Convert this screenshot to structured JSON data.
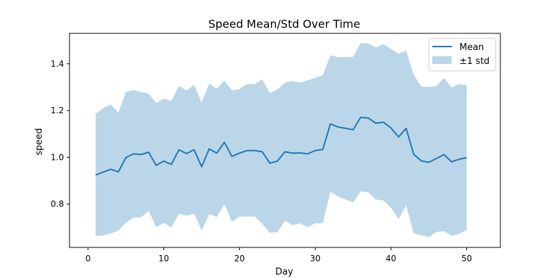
{
  "chart_data": {
    "type": "area",
    "title": "Speed Mean/Std Over Time",
    "xlabel": "Day",
    "ylabel": "speed",
    "xlim": [
      -2.45,
      54.45
    ],
    "ylim": [
      0.615,
      1.53
    ],
    "xticks": [
      0,
      10,
      20,
      30,
      40,
      50
    ],
    "yticks": [
      0.8,
      1.0,
      1.2,
      1.4
    ],
    "xtick_labels": [
      "0",
      "10",
      "20",
      "30",
      "40",
      "50"
    ],
    "ytick_labels": [
      "0.8",
      "1.0",
      "1.2",
      "1.4"
    ],
    "grid": false,
    "legend_position": "top-right",
    "x": [
      1,
      2,
      3,
      4,
      5,
      6,
      7,
      8,
      9,
      10,
      11,
      12,
      13,
      14,
      15,
      16,
      17,
      18,
      19,
      20,
      21,
      22,
      23,
      24,
      25,
      26,
      27,
      28,
      29,
      30,
      31,
      32,
      33,
      34,
      35,
      36,
      37,
      38,
      39,
      40,
      41,
      42,
      43,
      44,
      45,
      46,
      47,
      48,
      49,
      50
    ],
    "series": [
      {
        "name": "Mean",
        "type": "line",
        "color": "#1f77b4",
        "values": [
          0.924,
          0.937,
          0.949,
          0.938,
          0.999,
          1.015,
          1.012,
          1.022,
          0.966,
          0.984,
          0.97,
          1.032,
          1.016,
          1.033,
          0.96,
          1.036,
          1.018,
          1.064,
          1.004,
          1.018,
          1.029,
          1.029,
          1.024,
          0.975,
          0.984,
          1.024,
          1.018,
          1.019,
          1.015,
          1.029,
          1.034,
          1.143,
          1.13,
          1.124,
          1.118,
          1.171,
          1.168,
          1.146,
          1.15,
          1.126,
          1.087,
          1.124,
          1.013,
          0.985,
          0.979,
          0.995,
          1.012,
          0.981,
          0.992,
          0.999
        ]
      },
      {
        "name": "±1 std",
        "type": "band",
        "color": "#1f77b4",
        "alpha": 0.3,
        "upper": [
          1.187,
          1.21,
          1.226,
          1.191,
          1.28,
          1.287,
          1.28,
          1.272,
          1.232,
          1.251,
          1.242,
          1.305,
          1.285,
          1.31,
          1.235,
          1.316,
          1.293,
          1.329,
          1.286,
          1.292,
          1.313,
          1.313,
          1.334,
          1.275,
          1.29,
          1.319,
          1.326,
          1.32,
          1.33,
          1.34,
          1.351,
          1.436,
          1.429,
          1.429,
          1.43,
          1.489,
          1.487,
          1.47,
          1.484,
          1.464,
          1.443,
          1.456,
          1.354,
          1.302,
          1.301,
          1.305,
          1.339,
          1.298,
          1.313,
          1.309
        ],
        "lower": [
          0.663,
          0.666,
          0.674,
          0.687,
          0.72,
          0.743,
          0.743,
          0.772,
          0.701,
          0.72,
          0.7,
          0.76,
          0.75,
          0.76,
          0.687,
          0.757,
          0.745,
          0.8,
          0.724,
          0.747,
          0.747,
          0.747,
          0.716,
          0.678,
          0.68,
          0.729,
          0.71,
          0.718,
          0.701,
          0.718,
          0.718,
          0.853,
          0.833,
          0.82,
          0.807,
          0.855,
          0.85,
          0.82,
          0.815,
          0.785,
          0.735,
          0.795,
          0.676,
          0.667,
          0.659,
          0.681,
          0.684,
          0.665,
          0.672,
          0.69
        ]
      }
    ]
  }
}
